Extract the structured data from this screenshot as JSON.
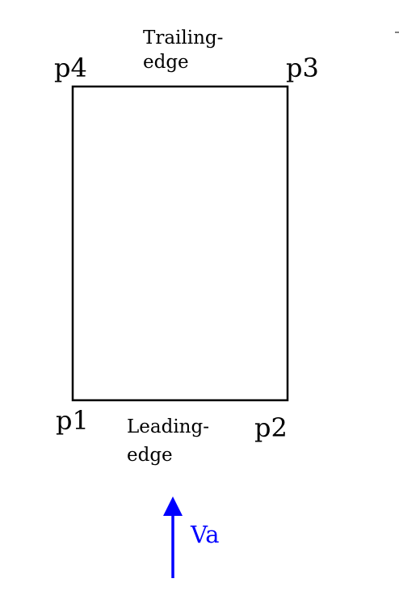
{
  "corners": {
    "p1": "p1",
    "p2": "p2",
    "p3": "p3",
    "p4": "p4"
  },
  "trailing_edge": {
    "line1": "Trailing-",
    "line2": "edge"
  },
  "leading_edge": {
    "line1": "Leading-",
    "line2": "edge"
  },
  "flow": {
    "label": "Va"
  },
  "colors": {
    "outline": "#000000",
    "flow_arrow": "#0000ff"
  }
}
